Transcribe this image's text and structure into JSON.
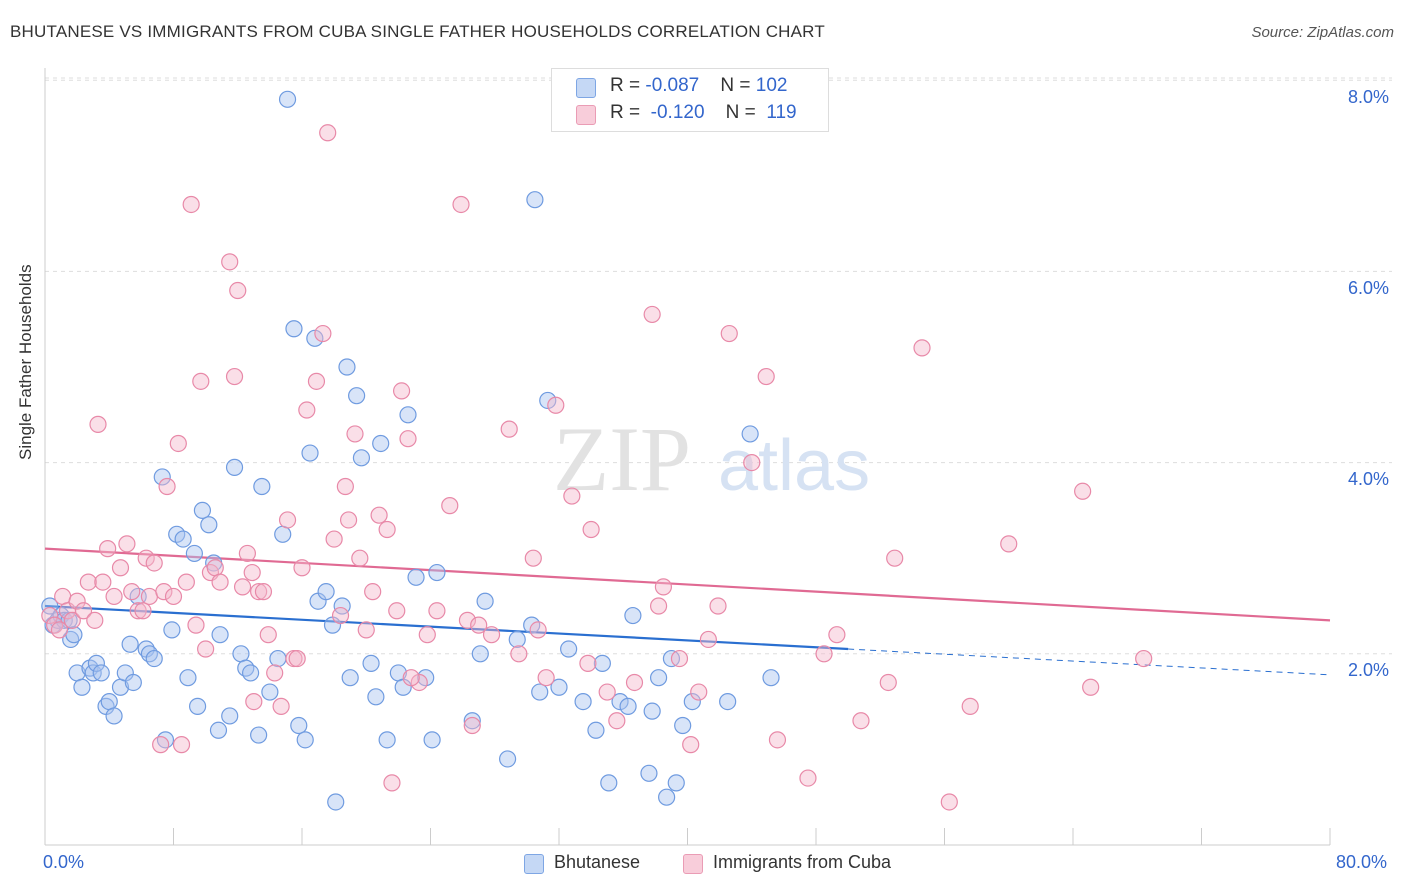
{
  "title": "BHUTANESE VS IMMIGRANTS FROM CUBA SINGLE FATHER HOUSEHOLDS CORRELATION CHART",
  "source": "Source: ZipAtlas.com",
  "watermark": {
    "zip": "ZIP",
    "atlas": "atlas"
  },
  "legend_top": {
    "rows": [
      {
        "r_label": "R = ",
        "r_value": "-0.087",
        "n_label": "N = ",
        "n_value": "102"
      },
      {
        "r_label": "R = ",
        "r_value": "-0.120",
        "n_label": "N = ",
        "n_value": "119"
      }
    ]
  },
  "colors": {
    "blue_fill": "#a9c4ef",
    "blue_stroke": "#6f9be0",
    "blue_line": "#2a6fd0",
    "pink_fill": "#f5b8cb",
    "pink_stroke": "#e889a8",
    "pink_line": "#e06a93",
    "grid": "#dddddd",
    "tick_text": "#3366cc"
  },
  "chart_data": {
    "type": "scatter",
    "title": "BHUTANESE VS IMMIGRANTS FROM CUBA SINGLE FATHER HOUSEHOLDS CORRELATION CHART",
    "xlabel": "",
    "ylabel": "Single Father Households",
    "xlim": [
      0,
      80
    ],
    "ylim": [
      0,
      8.3
    ],
    "x_tick_labels": [
      "0.0%",
      "80.0%"
    ],
    "y_ticks": [
      2,
      4,
      6,
      8
    ],
    "y_tick_labels": [
      "2.0%",
      "4.0%",
      "6.0%",
      "8.0%"
    ],
    "grid": true,
    "legend_placement": "bottom",
    "series": [
      {
        "name": "Bhutanese",
        "color": "#a9c4ef",
        "r": "-0.087",
        "n": "102",
        "trend": {
          "x_solid": [
            0,
            50
          ],
          "x_dashed": [
            50,
            80
          ],
          "y_at_0": 2.5,
          "y_at_80": 1.78
        },
        "points": [
          [
            0.3,
            2.5
          ],
          [
            0.5,
            2.3
          ],
          [
            0.8,
            2.35
          ],
          [
            1.0,
            2.4
          ],
          [
            1.2,
            2.35
          ],
          [
            1.5,
            2.35
          ],
          [
            1.6,
            2.15
          ],
          [
            1.8,
            2.2
          ],
          [
            2.0,
            1.8
          ],
          [
            2.3,
            1.65
          ],
          [
            2.8,
            1.85
          ],
          [
            3.0,
            1.8
          ],
          [
            3.2,
            1.9
          ],
          [
            3.5,
            1.8
          ],
          [
            3.8,
            1.45
          ],
          [
            4.0,
            1.5
          ],
          [
            4.3,
            1.35
          ],
          [
            4.7,
            1.65
          ],
          [
            5.0,
            1.8
          ],
          [
            5.3,
            2.1
          ],
          [
            5.5,
            1.7
          ],
          [
            5.8,
            2.6
          ],
          [
            6.3,
            2.05
          ],
          [
            6.5,
            2.0
          ],
          [
            6.8,
            1.95
          ],
          [
            7.3,
            3.85
          ],
          [
            7.5,
            1.1
          ],
          [
            7.9,
            2.25
          ],
          [
            8.2,
            3.25
          ],
          [
            8.6,
            3.2
          ],
          [
            8.9,
            1.75
          ],
          [
            9.3,
            3.05
          ],
          [
            9.5,
            1.45
          ],
          [
            9.8,
            3.5
          ],
          [
            10.2,
            3.35
          ],
          [
            10.5,
            2.95
          ],
          [
            10.9,
            2.2
          ],
          [
            10.8,
            1.2
          ],
          [
            11.5,
            1.35
          ],
          [
            11.8,
            3.95
          ],
          [
            12.2,
            2.0
          ],
          [
            12.5,
            1.85
          ],
          [
            12.8,
            1.8
          ],
          [
            13.3,
            1.15
          ],
          [
            13.5,
            3.75
          ],
          [
            14.0,
            1.6
          ],
          [
            14.5,
            1.95
          ],
          [
            14.8,
            3.25
          ],
          [
            15.1,
            7.8
          ],
          [
            15.5,
            5.4
          ],
          [
            15.8,
            1.25
          ],
          [
            16.2,
            1.1
          ],
          [
            16.5,
            4.1
          ],
          [
            16.8,
            5.3
          ],
          [
            17.0,
            2.55
          ],
          [
            17.5,
            2.65
          ],
          [
            17.9,
            2.3
          ],
          [
            18.1,
            0.45
          ],
          [
            18.5,
            2.5
          ],
          [
            18.8,
            5.0
          ],
          [
            19.0,
            1.75
          ],
          [
            19.4,
            4.7
          ],
          [
            19.7,
            4.05
          ],
          [
            20.3,
            1.9
          ],
          [
            20.6,
            1.55
          ],
          [
            20.9,
            4.2
          ],
          [
            21.3,
            1.1
          ],
          [
            22.0,
            1.8
          ],
          [
            22.3,
            1.65
          ],
          [
            22.6,
            4.5
          ],
          [
            23.1,
            2.8
          ],
          [
            23.7,
            1.75
          ],
          [
            24.1,
            1.1
          ],
          [
            24.4,
            2.85
          ],
          [
            26.6,
            1.3
          ],
          [
            27.1,
            2.0
          ],
          [
            27.4,
            2.55
          ],
          [
            28.8,
            0.9
          ],
          [
            29.4,
            2.15
          ],
          [
            30.3,
            2.3
          ],
          [
            30.8,
            1.6
          ],
          [
            31.3,
            4.65
          ],
          [
            32.0,
            1.65
          ],
          [
            32.6,
            2.05
          ],
          [
            33.5,
            1.5
          ],
          [
            34.3,
            1.2
          ],
          [
            34.7,
            1.9
          ],
          [
            35.1,
            0.65
          ],
          [
            35.8,
            1.5
          ],
          [
            36.3,
            1.45
          ],
          [
            36.6,
            2.4
          ],
          [
            37.6,
            0.75
          ],
          [
            37.8,
            1.4
          ],
          [
            38.2,
            1.75
          ],
          [
            38.7,
            0.5
          ],
          [
            39.0,
            1.95
          ],
          [
            39.3,
            0.65
          ],
          [
            39.7,
            1.25
          ],
          [
            40.3,
            1.5
          ],
          [
            42.5,
            1.5
          ],
          [
            43.9,
            4.3
          ],
          [
            45.2,
            1.75
          ],
          [
            30.5,
            6.75
          ]
        ]
      },
      {
        "name": "Immigrants from Cuba",
        "color": "#f5b8cb",
        "r": "-0.120",
        "n": "119",
        "trend": {
          "x_solid": [
            0,
            80
          ],
          "y_at_0": 3.1,
          "y_at_80": 2.35
        },
        "points": [
          [
            0.3,
            2.4
          ],
          [
            0.6,
            2.3
          ],
          [
            0.9,
            2.25
          ],
          [
            1.1,
            2.6
          ],
          [
            1.4,
            2.45
          ],
          [
            1.7,
            2.35
          ],
          [
            2.0,
            2.55
          ],
          [
            2.4,
            2.45
          ],
          [
            2.7,
            2.75
          ],
          [
            3.1,
            2.35
          ],
          [
            3.3,
            4.4
          ],
          [
            3.6,
            2.75
          ],
          [
            3.9,
            3.1
          ],
          [
            4.3,
            2.6
          ],
          [
            4.7,
            2.9
          ],
          [
            5.1,
            3.15
          ],
          [
            5.4,
            2.65
          ],
          [
            5.8,
            2.45
          ],
          [
            6.1,
            2.45
          ],
          [
            6.3,
            3.0
          ],
          [
            6.5,
            2.6
          ],
          [
            6.8,
            2.95
          ],
          [
            7.2,
            1.05
          ],
          [
            7.4,
            2.65
          ],
          [
            7.6,
            3.75
          ],
          [
            8.0,
            2.6
          ],
          [
            8.3,
            4.2
          ],
          [
            8.5,
            1.05
          ],
          [
            8.8,
            2.75
          ],
          [
            9.1,
            6.7
          ],
          [
            9.4,
            2.3
          ],
          [
            9.7,
            4.85
          ],
          [
            10.0,
            2.05
          ],
          [
            10.3,
            2.85
          ],
          [
            10.6,
            2.9
          ],
          [
            10.9,
            2.75
          ],
          [
            11.5,
            6.1
          ],
          [
            11.8,
            4.9
          ],
          [
            12.0,
            5.8
          ],
          [
            12.3,
            2.7
          ],
          [
            12.6,
            3.05
          ],
          [
            13.0,
            1.5
          ],
          [
            13.3,
            2.65
          ],
          [
            13.6,
            2.65
          ],
          [
            13.9,
            2.2
          ],
          [
            14.3,
            1.8
          ],
          [
            14.7,
            1.45
          ],
          [
            15.1,
            3.4
          ],
          [
            15.5,
            1.95
          ],
          [
            15.7,
            1.95
          ],
          [
            16.0,
            2.9
          ],
          [
            16.3,
            4.55
          ],
          [
            16.9,
            4.85
          ],
          [
            17.3,
            5.35
          ],
          [
            17.6,
            7.45
          ],
          [
            18.0,
            3.2
          ],
          [
            18.4,
            2.4
          ],
          [
            18.7,
            3.75
          ],
          [
            18.9,
            3.4
          ],
          [
            19.3,
            4.3
          ],
          [
            19.6,
            3.0
          ],
          [
            20.0,
            2.25
          ],
          [
            20.4,
            2.65
          ],
          [
            20.8,
            3.45
          ],
          [
            21.3,
            3.3
          ],
          [
            21.6,
            0.65
          ],
          [
            21.9,
            2.45
          ],
          [
            22.2,
            4.75
          ],
          [
            22.6,
            4.25
          ],
          [
            23.3,
            1.7
          ],
          [
            23.8,
            2.2
          ],
          [
            24.4,
            2.45
          ],
          [
            25.9,
            6.7
          ],
          [
            25.2,
            3.55
          ],
          [
            26.3,
            2.35
          ],
          [
            26.6,
            1.25
          ],
          [
            27.8,
            2.2
          ],
          [
            28.9,
            4.35
          ],
          [
            29.5,
            2.0
          ],
          [
            30.4,
            3.0
          ],
          [
            30.7,
            2.25
          ],
          [
            31.2,
            1.75
          ],
          [
            31.8,
            4.6
          ],
          [
            32.8,
            3.65
          ],
          [
            34.0,
            3.3
          ],
          [
            35.0,
            1.6
          ],
          [
            35.6,
            1.3
          ],
          [
            36.7,
            1.7
          ],
          [
            37.8,
            5.55
          ],
          [
            38.2,
            2.5
          ],
          [
            38.5,
            2.7
          ],
          [
            39.5,
            1.95
          ],
          [
            40.2,
            1.05
          ],
          [
            40.7,
            1.6
          ],
          [
            41.3,
            2.15
          ],
          [
            41.9,
            2.5
          ],
          [
            42.6,
            5.35
          ],
          [
            44.0,
            4.0
          ],
          [
            44.9,
            4.9
          ],
          [
            45.6,
            1.1
          ],
          [
            47.5,
            0.7
          ],
          [
            48.5,
            2.0
          ],
          [
            49.3,
            2.2
          ],
          [
            50.8,
            1.3
          ],
          [
            52.5,
            1.7
          ],
          [
            52.9,
            3.0
          ],
          [
            54.6,
            5.2
          ],
          [
            56.3,
            0.45
          ],
          [
            57.6,
            1.45
          ],
          [
            60.0,
            3.15
          ],
          [
            64.6,
            3.7
          ],
          [
            65.1,
            1.65
          ],
          [
            68.4,
            1.95
          ],
          [
            22.8,
            1.75
          ],
          [
            33.8,
            1.9
          ],
          [
            27.0,
            2.3
          ],
          [
            12.9,
            2.85
          ]
        ]
      }
    ]
  },
  "legend_bottom": {
    "items": [
      {
        "label": "Bhutanese"
      },
      {
        "label": "Immigrants from Cuba"
      }
    ]
  }
}
